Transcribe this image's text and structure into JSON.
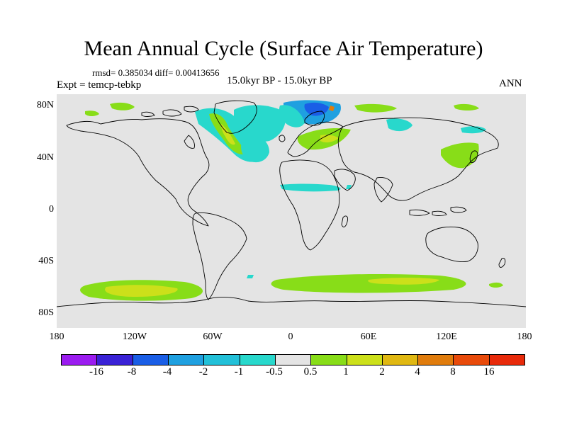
{
  "title": "Mean Annual Cycle (Surface Air Temperature)",
  "stats": "rmsd= 0.385034 diff= 0.00413656",
  "experiment": "Expt = temcp-tebkp",
  "period": "15.0kyr BP - 15.0kyr BP",
  "season": "ANN",
  "lat_labels": [
    "80N",
    "40N",
    "0",
    "40S",
    "80S"
  ],
  "lon_labels": [
    "180",
    "120W",
    "60W",
    "0",
    "60E",
    "120E",
    "180"
  ],
  "colorbar": {
    "labels": [
      "-16",
      "-8",
      "-4",
      "-2",
      "-1",
      "-0.5",
      "0.5",
      "1",
      "2",
      "4",
      "8",
      "16"
    ],
    "colors": [
      "#9b1cf0",
      "#3a22d6",
      "#1a5ee6",
      "#1fa0e0",
      "#22c0d8",
      "#28d8cc",
      "#e4e4e4",
      "#88dd18",
      "#cce01a",
      "#e0b812",
      "#e07c0c",
      "#e84a0a",
      "#e82a0a"
    ]
  }
}
